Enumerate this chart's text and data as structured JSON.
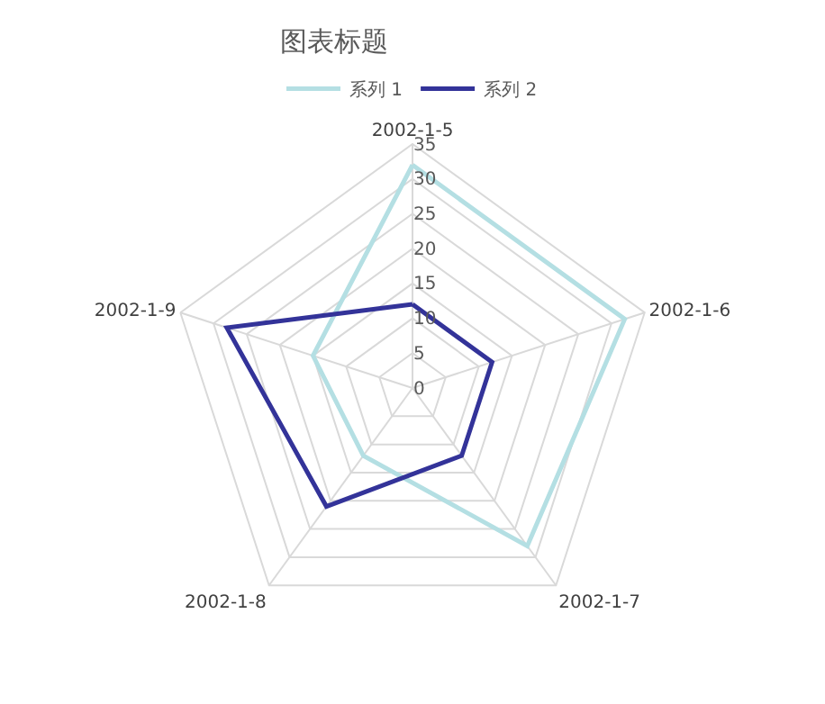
{
  "chart_data": {
    "type": "radar",
    "title": "图表标题",
    "categories": [
      "2002-1-5",
      "2002-1-6",
      "2002-1-7",
      "2002-1-8",
      "2002-1-9"
    ],
    "series": [
      {
        "name": "系列 1",
        "color": "#b4dfe3",
        "values": [
          32,
          32,
          28,
          12,
          15
        ]
      },
      {
        "name": "系列 2",
        "color": "#333399",
        "values": [
          12,
          12,
          12,
          21,
          28
        ]
      }
    ],
    "ylim": [
      0,
      35
    ],
    "yticks": [
      0,
      5,
      10,
      15,
      20,
      25,
      30,
      35
    ],
    "grid": true,
    "legend": "top",
    "marker": "none",
    "line_style": "solid"
  }
}
